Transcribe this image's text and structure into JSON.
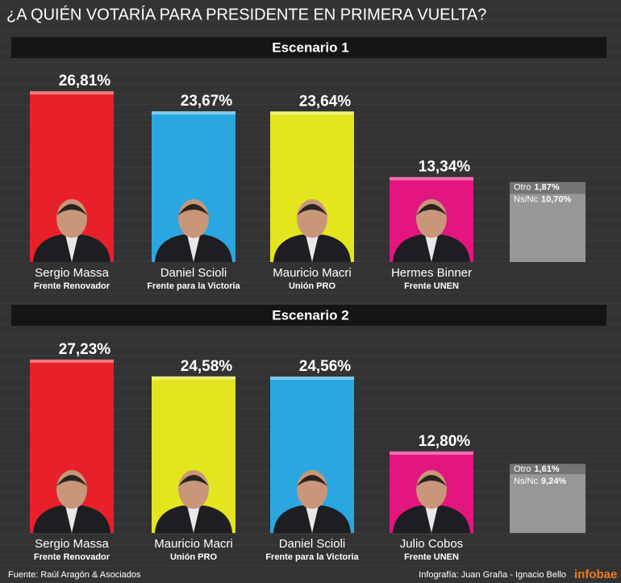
{
  "title": "¿A QUIÉN VOTARÍA PARA PRESIDENTE EN PRIMERA VUELTA?",
  "chart_data": [
    {
      "type": "bar",
      "title": "Escenario 1",
      "categories": [
        "Sergio Massa",
        "Daniel Scioli",
        "Mauricio Macri",
        "Hermes Binner"
      ],
      "parties": [
        "Frente Renovador",
        "Frente para la Victoria",
        "Unión PRO",
        "Frente UNEN"
      ],
      "values": [
        26.81,
        23.67,
        23.64,
        13.34
      ],
      "value_labels": [
        "26,81%",
        "23,67%",
        "23,64%",
        "13,34%"
      ],
      "colors": [
        "#e8202a",
        "#2aa7e0",
        "#e3e61f",
        "#e3157e"
      ],
      "stack": [
        {
          "name": "Ns/Nc",
          "value": 10.7,
          "value_label": "10,70%",
          "color": "#979797"
        },
        {
          "name": "Otro",
          "value": 1.87,
          "value_label": "1,87%",
          "color": "#747474"
        }
      ]
    },
    {
      "type": "bar",
      "title": "Escenario 2",
      "categories": [
        "Sergio Massa",
        "Mauricio Macri",
        "Daniel Scioli",
        "Julio Cobos"
      ],
      "parties": [
        "Frente Renovador",
        "Unión PRO",
        "Frente para la Victoria",
        "Frente UNEN"
      ],
      "values": [
        27.23,
        24.58,
        24.56,
        12.8
      ],
      "value_labels": [
        "27,23%",
        "24,58%",
        "24,56%",
        "12,80%"
      ],
      "colors": [
        "#e8202a",
        "#e3e61f",
        "#2aa7e0",
        "#e3157e"
      ],
      "stack": [
        {
          "name": "Ns/Nc",
          "value": 9.24,
          "value_label": "9,24%",
          "color": "#979797"
        },
        {
          "name": "Otro",
          "value": 1.61,
          "value_label": "1,61%",
          "color": "#747474"
        }
      ]
    }
  ],
  "footer": {
    "source": "Fuente: Raúl Aragón & Asociados",
    "credits": "Infografía:  Juan Graña - Ignacio Bello",
    "brand": "infobae"
  }
}
